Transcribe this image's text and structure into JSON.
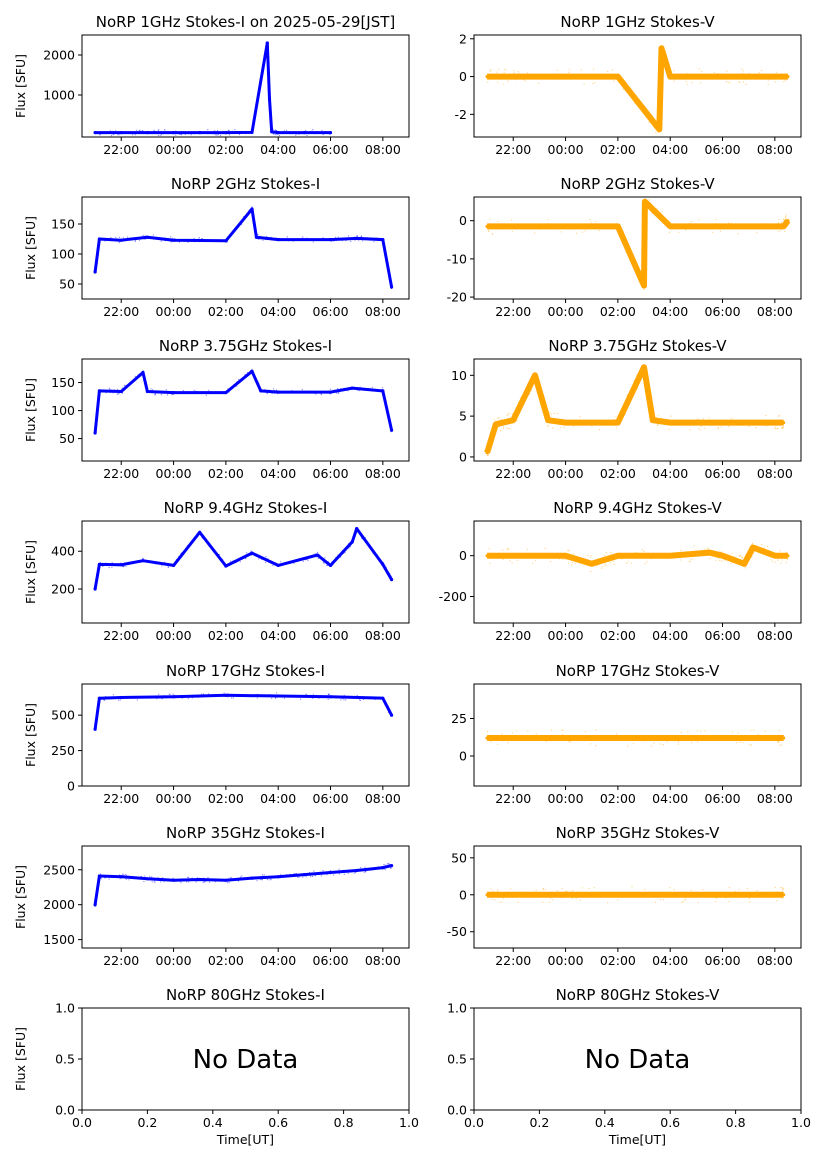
{
  "figure": {
    "background": "#ffffff",
    "axis_color": "#000000"
  },
  "colors": {
    "stokes_i": "#0000ff",
    "stokes_v": "#ffa500"
  },
  "time_ticks": [
    "22:00",
    "00:00",
    "02:00",
    "04:00",
    "06:00",
    "08:00"
  ],
  "chart_data": [
    {
      "type": "scatter",
      "title": "NoRP 1GHz Stokes-I on 2025-05-29[JST]",
      "ylabel": "Flux [SFU]",
      "xlabel": "",
      "xticks": [
        "22:00",
        "00:00",
        "02:00",
        "04:00",
        "06:00",
        "08:00"
      ],
      "xlim": [
        "20:30",
        "09:00"
      ],
      "yticks": [
        1000,
        2000
      ],
      "ylim": [
        -50,
        2500
      ],
      "legend": "none",
      "grid": false,
      "color": "#0000ff",
      "series": [
        {
          "x": [
            "21:00",
            "22:00",
            "23:00",
            "00:00",
            "01:00",
            "02:00",
            "03:00",
            "03:35",
            "03:40",
            "03:45",
            "04:00",
            "05:00",
            "06:00"
          ],
          "y": [
            60,
            60,
            60,
            60,
            60,
            60,
            65,
            2300,
            900,
            80,
            60,
            60,
            60
          ]
        }
      ]
    },
    {
      "type": "scatter",
      "title": "NoRP 1GHz Stokes-V",
      "ylabel": "",
      "xlabel": "",
      "xticks": [
        "22:00",
        "00:00",
        "02:00",
        "04:00",
        "06:00",
        "08:00"
      ],
      "xlim": [
        "20:30",
        "09:00"
      ],
      "yticks": [
        -2,
        0,
        2
      ],
      "ylim": [
        -3.2,
        2.2
      ],
      "legend": "none",
      "grid": false,
      "color": "#ffa500",
      "series": [
        {
          "x": [
            "21:00",
            "22:00",
            "00:00",
            "02:00",
            "03:35",
            "03:40",
            "04:00",
            "06:00",
            "07:00",
            "08:30"
          ],
          "y": [
            0,
            0,
            0,
            0,
            -2.8,
            1.5,
            0,
            0,
            0,
            0
          ]
        }
      ]
    },
    {
      "type": "scatter",
      "title": "NoRP 2GHz Stokes-I",
      "ylabel": "Flux [SFU]",
      "xlabel": "",
      "xticks": [
        "22:00",
        "00:00",
        "02:00",
        "04:00",
        "06:00",
        "08:00"
      ],
      "xlim": [
        "20:30",
        "09:00"
      ],
      "yticks": [
        50,
        100,
        150
      ],
      "ylim": [
        25,
        195
      ],
      "legend": "none",
      "grid": false,
      "color": "#0000ff",
      "series": [
        {
          "x": [
            "21:00",
            "21:10",
            "22:00",
            "23:00",
            "00:00",
            "02:00",
            "03:00",
            "03:10",
            "04:00",
            "06:00",
            "07:00",
            "08:00",
            "08:20"
          ],
          "y": [
            70,
            125,
            123,
            128,
            123,
            122,
            175,
            128,
            124,
            124,
            126,
            124,
            45
          ]
        }
      ]
    },
    {
      "type": "scatter",
      "title": "NoRP 2GHz Stokes-V",
      "ylabel": "",
      "xlabel": "",
      "xticks": [
        "22:00",
        "00:00",
        "02:00",
        "04:00",
        "06:00",
        "08:00"
      ],
      "xlim": [
        "20:30",
        "09:00"
      ],
      "yticks": [
        -20,
        -10,
        0
      ],
      "ylim": [
        -20.5,
        6.2
      ],
      "legend": "none",
      "grid": false,
      "color": "#ffa500",
      "series": [
        {
          "x": [
            "21:00",
            "22:00",
            "00:00",
            "02:00",
            "03:00",
            "03:02",
            "04:00",
            "06:00",
            "08:20",
            "08:30"
          ],
          "y": [
            -1.5,
            -1.5,
            -1.5,
            -1.5,
            -17,
            5,
            -1.5,
            -1.5,
            -1.5,
            0
          ]
        }
      ]
    },
    {
      "type": "scatter",
      "title": "NoRP 3.75GHz Stokes-I",
      "ylabel": "Flux [SFU]",
      "xlabel": "",
      "xticks": [
        "22:00",
        "00:00",
        "02:00",
        "04:00",
        "06:00",
        "08:00"
      ],
      "xlim": [
        "20:30",
        "09:00"
      ],
      "yticks": [
        50,
        100,
        150
      ],
      "ylim": [
        10,
        192
      ],
      "legend": "none",
      "grid": false,
      "color": "#0000ff",
      "series": [
        {
          "x": [
            "21:00",
            "21:10",
            "22:00",
            "22:50",
            "23:00",
            "00:00",
            "02:00",
            "03:00",
            "03:20",
            "04:00",
            "06:00",
            "06:50",
            "08:00",
            "08:20"
          ],
          "y": [
            60,
            135,
            134,
            168,
            134,
            132,
            132,
            170,
            135,
            133,
            133,
            140,
            135,
            65
          ]
        }
      ]
    },
    {
      "type": "scatter",
      "title": "NoRP 3.75GHz Stokes-V",
      "ylabel": "",
      "xlabel": "",
      "xticks": [
        "22:00",
        "00:00",
        "02:00",
        "04:00",
        "06:00",
        "08:00"
      ],
      "xlim": [
        "20:30",
        "09:00"
      ],
      "yticks": [
        0,
        5,
        10
      ],
      "ylim": [
        -0.5,
        12
      ],
      "legend": "none",
      "grid": false,
      "color": "#ffa500",
      "series": [
        {
          "x": [
            "21:00",
            "21:20",
            "22:00",
            "22:50",
            "23:20",
            "00:00",
            "02:00",
            "03:00",
            "03:20",
            "04:00",
            "06:00",
            "08:00",
            "08:20"
          ],
          "y": [
            0.5,
            4,
            4.5,
            10,
            4.5,
            4.2,
            4.2,
            11,
            4.5,
            4.2,
            4.2,
            4.2,
            4.2
          ]
        }
      ]
    },
    {
      "type": "scatter",
      "title": "NoRP 9.4GHz Stokes-I",
      "ylabel": "Flux [SFU]",
      "xlabel": "",
      "xticks": [
        "22:00",
        "00:00",
        "02:00",
        "04:00",
        "06:00",
        "08:00"
      ],
      "xlim": [
        "20:30",
        "09:00"
      ],
      "yticks": [
        200,
        400
      ],
      "ylim": [
        20,
        560
      ],
      "legend": "none",
      "grid": false,
      "color": "#0000ff",
      "series": [
        {
          "x": [
            "21:00",
            "21:10",
            "22:00",
            "22:50",
            "00:00",
            "01:00",
            "02:00",
            "03:00",
            "04:00",
            "05:30",
            "06:00",
            "06:50",
            "07:00",
            "08:00",
            "08:20"
          ],
          "y": [
            200,
            330,
            328,
            350,
            325,
            500,
            322,
            390,
            325,
            380,
            325,
            450,
            520,
            330,
            250
          ]
        }
      ]
    },
    {
      "type": "scatter",
      "title": "NoRP 9.4GHz Stokes-V",
      "ylabel": "",
      "xlabel": "",
      "xticks": [
        "22:00",
        "00:00",
        "02:00",
        "04:00",
        "06:00",
        "08:00"
      ],
      "xlim": [
        "20:30",
        "09:00"
      ],
      "yticks": [
        -200,
        0
      ],
      "ylim": [
        -330,
        170
      ],
      "legend": "none",
      "grid": false,
      "color": "#ffa500",
      "series": [
        {
          "x": [
            "21:00",
            "22:00",
            "00:00",
            "01:00",
            "02:00",
            "04:00",
            "05:30",
            "06:00",
            "06:50",
            "07:10",
            "08:00",
            "08:30"
          ],
          "y": [
            0,
            0,
            0,
            -40,
            0,
            0,
            15,
            0,
            -40,
            40,
            0,
            0
          ]
        }
      ]
    },
    {
      "type": "scatter",
      "title": "NoRP 17GHz Stokes-I",
      "ylabel": "Flux [SFU]",
      "xlabel": "",
      "xticks": [
        "22:00",
        "00:00",
        "02:00",
        "04:00",
        "06:00",
        "08:00"
      ],
      "xlim": [
        "20:30",
        "09:00"
      ],
      "yticks": [
        0,
        250,
        500
      ],
      "ylim": [
        0,
        720
      ],
      "legend": "none",
      "grid": false,
      "color": "#0000ff",
      "series": [
        {
          "x": [
            "21:00",
            "21:10",
            "22:00",
            "00:00",
            "02:00",
            "04:00",
            "06:00",
            "08:00",
            "08:20"
          ],
          "y": [
            400,
            620,
            625,
            630,
            640,
            635,
            630,
            620,
            500
          ]
        }
      ]
    },
    {
      "type": "scatter",
      "title": "NoRP 17GHz Stokes-V",
      "ylabel": "",
      "xlabel": "",
      "xticks": [
        "22:00",
        "00:00",
        "02:00",
        "04:00",
        "06:00",
        "08:00"
      ],
      "xlim": [
        "20:30",
        "09:00"
      ],
      "yticks": [
        0,
        25
      ],
      "ylim": [
        -20,
        48
      ],
      "legend": "none",
      "grid": false,
      "color": "#ffa500",
      "series": [
        {
          "x": [
            "21:00",
            "22:00",
            "00:00",
            "02:00",
            "04:00",
            "06:00",
            "08:00",
            "08:20"
          ],
          "y": [
            12,
            12,
            12,
            12,
            12,
            12,
            12,
            12
          ]
        }
      ]
    },
    {
      "type": "scatter",
      "title": "NoRP 35GHz Stokes-I",
      "ylabel": "Flux [SFU]",
      "xlabel": "",
      "xticks": [
        "22:00",
        "00:00",
        "02:00",
        "04:00",
        "06:00",
        "08:00"
      ],
      "xlim": [
        "20:30",
        "09:00"
      ],
      "yticks": [
        1500,
        2000,
        2500
      ],
      "ylim": [
        1380,
        2840
      ],
      "legend": "none",
      "grid": false,
      "color": "#0000ff",
      "series": [
        {
          "x": [
            "21:00",
            "21:10",
            "22:00",
            "23:00",
            "00:00",
            "01:00",
            "02:00",
            "03:00",
            "04:00",
            "05:00",
            "06:00",
            "07:00",
            "08:00",
            "08:20"
          ],
          "y": [
            2000,
            2410,
            2400,
            2370,
            2350,
            2360,
            2350,
            2380,
            2400,
            2430,
            2460,
            2490,
            2530,
            2560
          ]
        }
      ]
    },
    {
      "type": "scatter",
      "title": "NoRP 35GHz Stokes-V",
      "ylabel": "",
      "xlabel": "",
      "xticks": [
        "22:00",
        "00:00",
        "02:00",
        "04:00",
        "06:00",
        "08:00"
      ],
      "xlim": [
        "20:30",
        "09:00"
      ],
      "yticks": [
        -50,
        0,
        50
      ],
      "ylim": [
        -72,
        66
      ],
      "legend": "none",
      "grid": false,
      "color": "#ffa500",
      "series": [
        {
          "x": [
            "21:00",
            "22:00",
            "00:00",
            "02:00",
            "04:00",
            "06:00",
            "08:00",
            "08:20"
          ],
          "y": [
            0,
            0,
            0,
            0,
            0,
            0,
            0,
            0
          ]
        }
      ]
    },
    {
      "type": "scatter",
      "title": "NoRP 80GHz Stokes-I",
      "ylabel": "Flux [SFU]",
      "xlabel": "Time[UT]",
      "xticks": [
        "0.0",
        "0.2",
        "0.4",
        "0.6",
        "0.8",
        "1.0"
      ],
      "xlim": [
        0,
        1
      ],
      "yticks": [
        "0.0",
        "0.5",
        "1.0"
      ],
      "ylim": [
        0,
        1
      ],
      "legend": "none",
      "grid": false,
      "annotation": "No Data",
      "series": []
    },
    {
      "type": "scatter",
      "title": "NoRP 80GHz Stokes-V",
      "ylabel": "",
      "xlabel": "Time[UT]",
      "xticks": [
        "0.0",
        "0.2",
        "0.4",
        "0.6",
        "0.8",
        "1.0"
      ],
      "xlim": [
        0,
        1
      ],
      "yticks": [
        "0.0",
        "0.5",
        "1.0"
      ],
      "ylim": [
        0,
        1
      ],
      "legend": "none",
      "grid": false,
      "annotation": "No Data",
      "series": []
    }
  ]
}
